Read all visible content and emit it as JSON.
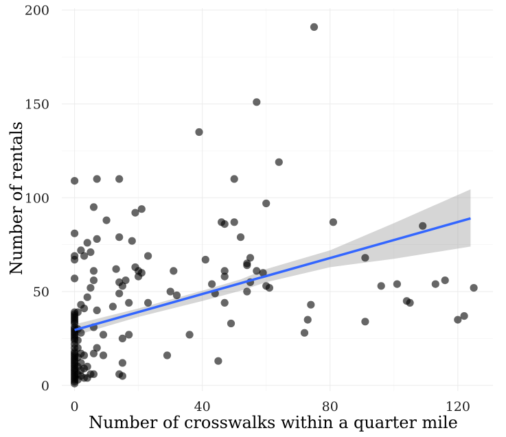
{
  "chart_data": {
    "type": "scatter",
    "title": "",
    "xlabel": "Number of crosswalks within a quarter mile",
    "ylabel": "Number of rentals",
    "xlim": [
      -4,
      131
    ],
    "ylim": [
      -3,
      201
    ],
    "x_ticks": [
      0,
      40,
      80,
      120
    ],
    "y_ticks": [
      0,
      50,
      100,
      150,
      200
    ],
    "x_tick_labels": [
      "0",
      "40",
      "80",
      "120"
    ],
    "y_tick_labels": [
      "0",
      "50",
      "100",
      "150",
      "200"
    ],
    "grid": true,
    "point_color": "#000000",
    "point_opacity": 0.6,
    "fit_line_color": "#3366ff",
    "band_color": "#999999",
    "points": [
      [
        0,
        109
      ],
      [
        0,
        81
      ],
      [
        0,
        69
      ],
      [
        0,
        67
      ],
      [
        0,
        57
      ],
      [
        0,
        39
      ],
      [
        0,
        38
      ],
      [
        0,
        37
      ],
      [
        0,
        36
      ],
      [
        0,
        35
      ],
      [
        0,
        34
      ],
      [
        0,
        33
      ],
      [
        0,
        31
      ],
      [
        0,
        30
      ],
      [
        0,
        29
      ],
      [
        0,
        28
      ],
      [
        0,
        27
      ],
      [
        0,
        26
      ],
      [
        0,
        25
      ],
      [
        0,
        24
      ],
      [
        0,
        22
      ],
      [
        0,
        20
      ],
      [
        0,
        18
      ],
      [
        0,
        17
      ],
      [
        0,
        16
      ],
      [
        0,
        15
      ],
      [
        0,
        14
      ],
      [
        0,
        13
      ],
      [
        0,
        12
      ],
      [
        0,
        11
      ],
      [
        0,
        10
      ],
      [
        0,
        9
      ],
      [
        0,
        8
      ],
      [
        0,
        7
      ],
      [
        0,
        6
      ],
      [
        0,
        5
      ],
      [
        0,
        4
      ],
      [
        0,
        3
      ],
      [
        0,
        2
      ],
      [
        0,
        1
      ],
      [
        1,
        39
      ],
      [
        1,
        30
      ],
      [
        1,
        24
      ],
      [
        1,
        20
      ],
      [
        1,
        15
      ],
      [
        1,
        10
      ],
      [
        1,
        6
      ],
      [
        1,
        3
      ],
      [
        2,
        72
      ],
      [
        2,
        43
      ],
      [
        2,
        28
      ],
      [
        2,
        17
      ],
      [
        2,
        12
      ],
      [
        2,
        8
      ],
      [
        2,
        5
      ],
      [
        3,
        69
      ],
      [
        3,
        41
      ],
      [
        3,
        16
      ],
      [
        3,
        9
      ],
      [
        3,
        4
      ],
      [
        4,
        76
      ],
      [
        4,
        47
      ],
      [
        4,
        10
      ],
      [
        4,
        4
      ],
      [
        5,
        71
      ],
      [
        5,
        52
      ],
      [
        5,
        6
      ],
      [
        6,
        95
      ],
      [
        6,
        61
      ],
      [
        6,
        56
      ],
      [
        6,
        31
      ],
      [
        6,
        17
      ],
      [
        6,
        6
      ],
      [
        7,
        110
      ],
      [
        7,
        78
      ],
      [
        7,
        40
      ],
      [
        7,
        20
      ],
      [
        9,
        27
      ],
      [
        9,
        16
      ],
      [
        10,
        88
      ],
      [
        12,
        42
      ],
      [
        13,
        62
      ],
      [
        14,
        110
      ],
      [
        14,
        79
      ],
      [
        14,
        55
      ],
      [
        14,
        49
      ],
      [
        14,
        6
      ],
      [
        15,
        53
      ],
      [
        15,
        25
      ],
      [
        15,
        12
      ],
      [
        15,
        5
      ],
      [
        16,
        56
      ],
      [
        17,
        44
      ],
      [
        17,
        27
      ],
      [
        18,
        77
      ],
      [
        19,
        92
      ],
      [
        19,
        63
      ],
      [
        20,
        61
      ],
      [
        20,
        58
      ],
      [
        21,
        94
      ],
      [
        21,
        60
      ],
      [
        23,
        69
      ],
      [
        23,
        44
      ],
      [
        29,
        16
      ],
      [
        30,
        50
      ],
      [
        31,
        61
      ],
      [
        32,
        48
      ],
      [
        36,
        27
      ],
      [
        39,
        135
      ],
      [
        41,
        67
      ],
      [
        43,
        54
      ],
      [
        44,
        49
      ],
      [
        45,
        13
      ],
      [
        46,
        87
      ],
      [
        47,
        86
      ],
      [
        47,
        61
      ],
      [
        47,
        58
      ],
      [
        47,
        44
      ],
      [
        49,
        33
      ],
      [
        50,
        110
      ],
      [
        50,
        87
      ],
      [
        52,
        79
      ],
      [
        54,
        65
      ],
      [
        54,
        64
      ],
      [
        54,
        50
      ],
      [
        55,
        68
      ],
      [
        55,
        55
      ],
      [
        57,
        151
      ],
      [
        57,
        61
      ],
      [
        59,
        60
      ],
      [
        60,
        97
      ],
      [
        60,
        53
      ],
      [
        61,
        52
      ],
      [
        64,
        119
      ],
      [
        72,
        28
      ],
      [
        73,
        35
      ],
      [
        74,
        43
      ],
      [
        75,
        191
      ],
      [
        81,
        87
      ],
      [
        91,
        68
      ],
      [
        91,
        34
      ],
      [
        96,
        53
      ],
      [
        101,
        54
      ],
      [
        104,
        45
      ],
      [
        105,
        44
      ],
      [
        109,
        85
      ],
      [
        113,
        54
      ],
      [
        116,
        56
      ],
      [
        120,
        35
      ],
      [
        122,
        37
      ],
      [
        125,
        52
      ]
    ],
    "fit_line": {
      "x": [
        0,
        124
      ],
      "y": [
        29.5,
        89
      ]
    },
    "confidence_band": {
      "x": [
        0,
        20,
        40,
        52,
        60,
        80,
        100,
        124
      ],
      "upper": [
        32.5,
        41,
        50.5,
        56.5,
        62,
        72,
        86.5,
        104.5
      ],
      "lower": [
        26.5,
        36.5,
        45,
        50.5,
        55,
        63,
        67.5,
        74
      ]
    }
  }
}
